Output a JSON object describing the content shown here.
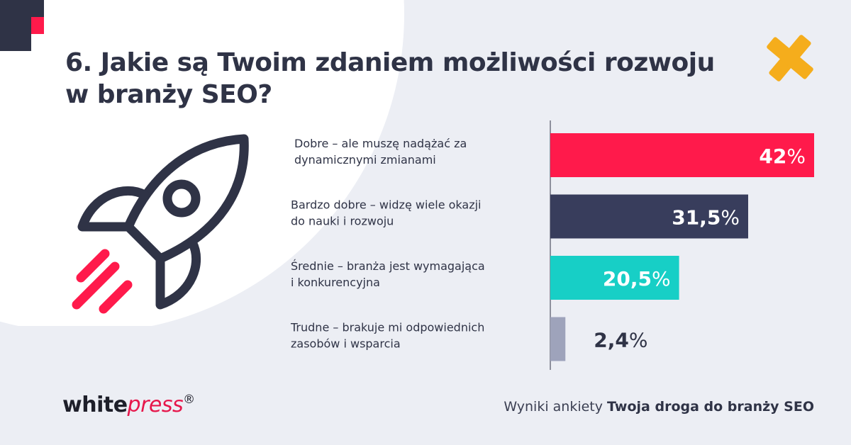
{
  "title": {
    "line1": "6. Jakie są Twoim zdaniem możliwości rozwoju",
    "line2": "w branży SEO?"
  },
  "chart_data": {
    "type": "bar",
    "orientation": "horizontal",
    "categories": [
      [
        "Dobre – ale muszę nadążać za",
        "dynamicznymi zmianami"
      ],
      [
        "Bardzo dobre – widzę wiele okazji",
        "do nauki i rozwoju"
      ],
      [
        "Średnie – branża jest wymagająca",
        "i konkurencyjna"
      ],
      [
        "Trudne – brakuje mi odpowiednich",
        "zasobów i wsparcia"
      ]
    ],
    "values": [
      42,
      31.5,
      20.5,
      2.4
    ],
    "value_labels": [
      "42",
      "31,5",
      "20,5",
      "2,4"
    ],
    "unit": "%",
    "colors": [
      "#ff1a4b",
      "#383d5c",
      "#17cfc6",
      "#9ea3bb"
    ],
    "label_colors": [
      "#ffffff",
      "#ffffff",
      "#ffffff",
      "#2f3346"
    ],
    "xlim": [
      0,
      42
    ]
  },
  "branding": {
    "logo_bold": "white",
    "logo_italic": "press",
    "logo_mark": "®",
    "accent_color": "#e6174b"
  },
  "footer": {
    "prefix": "Wyniki ankiety ",
    "survey_name": "Twoja droga do branży SEO"
  },
  "decorations": {
    "illustration": "rocket-icon",
    "shape": "cross-icon",
    "cross_color": "#f5ad1c"
  }
}
